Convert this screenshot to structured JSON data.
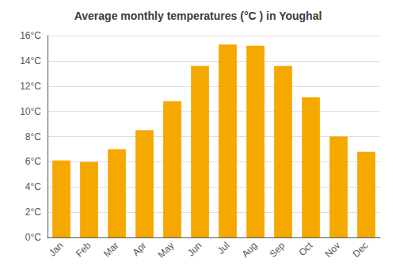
{
  "chart_data": {
    "type": "bar",
    "title": "Average monthly temperatures (°C ) in Youghal",
    "categories": [
      "Jan",
      "Feb",
      "Mar",
      "Apr",
      "May",
      "Jun",
      "Jul",
      "Aug",
      "Sep",
      "Oct",
      "Nov",
      "Dec"
    ],
    "values": [
      6.1,
      6.0,
      7.0,
      8.5,
      10.8,
      13.6,
      15.3,
      15.2,
      13.6,
      11.1,
      8.0,
      6.8
    ],
    "color": "#F5A800",
    "ylim": [
      0,
      16
    ],
    "yticks": [
      {
        "value": 0,
        "label": "0°C"
      },
      {
        "value": 2,
        "label": "2°C"
      },
      {
        "value": 4,
        "label": "4°C"
      },
      {
        "value": 6,
        "label": "6°C"
      },
      {
        "value": 8,
        "label": "8°C"
      },
      {
        "value": 10,
        "label": "10°C"
      },
      {
        "value": 12,
        "label": "12°C"
      },
      {
        "value": 14,
        "label": "14°C"
      },
      {
        "value": 16,
        "label": "16°C"
      }
    ],
    "grid": true
  }
}
